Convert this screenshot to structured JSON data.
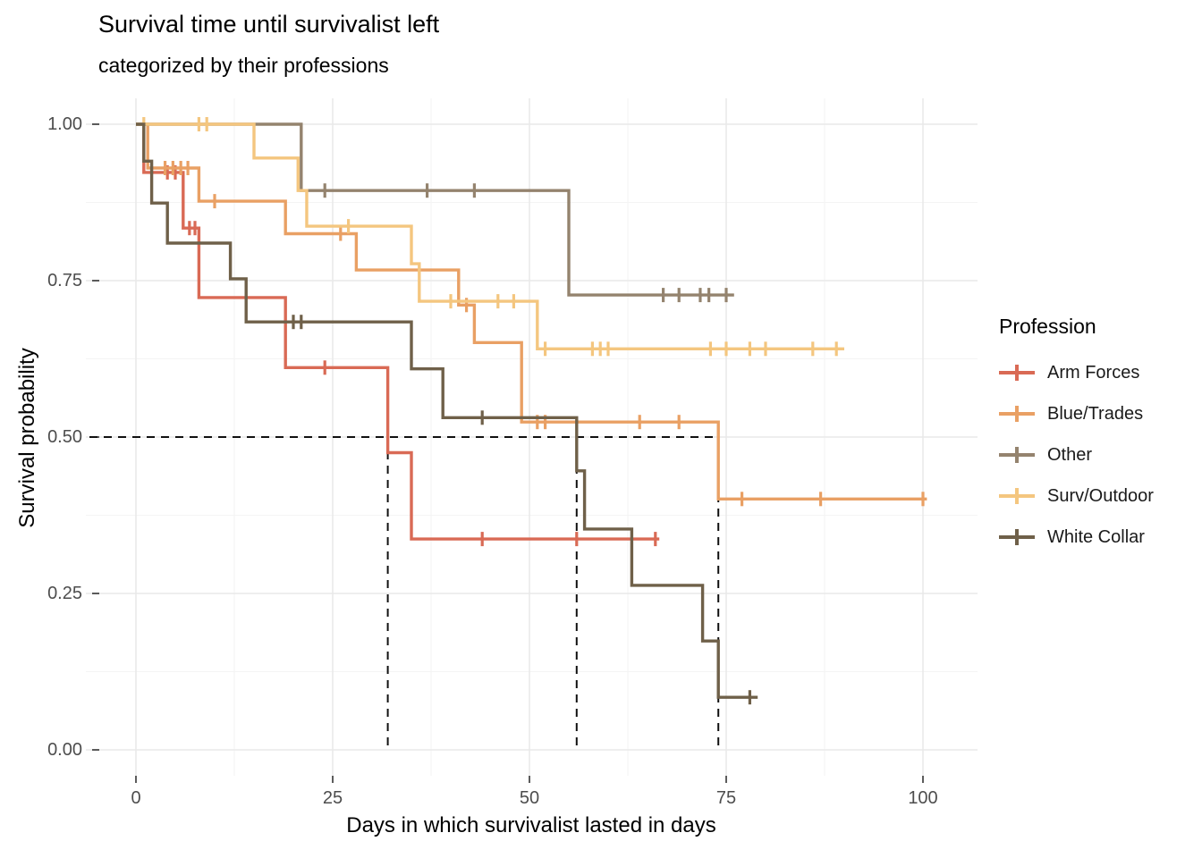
{
  "header": {
    "title": "Survival time until survivalist left",
    "subtitle": "categorized by their professions"
  },
  "axes": {
    "x_title": "Days in which survivalist lasted in days",
    "y_title": "Survival probability",
    "x_tick_labels": [
      "0",
      "25",
      "50",
      "75",
      "100"
    ],
    "y_tick_labels": [
      "1.00",
      "0.75",
      "0.50",
      "0.25",
      "0.00"
    ],
    "x_major": [
      0,
      25,
      50,
      75,
      100
    ],
    "x_minor": [
      12.5,
      37.5,
      62.5,
      87.5
    ],
    "y_major": [
      0,
      0.25,
      0.5,
      0.75,
      1.0
    ],
    "y_minor": [
      0.125,
      0.375,
      0.625,
      0.875
    ]
  },
  "legend": {
    "title": "Profession",
    "items": [
      {
        "label": "Arm Forces",
        "color": "#D96A55"
      },
      {
        "label": "Blue/Trades",
        "color": "#E9A064"
      },
      {
        "label": "Other",
        "color": "#94836E"
      },
      {
        "label": "Surv/Outdoor",
        "color": "#F4C67F"
      },
      {
        "label": "White Collar",
        "color": "#6F6049"
      }
    ]
  },
  "style": {
    "grid_major_color": "#E9E9E9",
    "grid_minor_color": "#F4F4F4",
    "tick_color": "#333333",
    "median_line_color": "#111111"
  },
  "chart_data": {
    "type": "line",
    "subtype": "kaplan-meier-step",
    "title": "Survival time until survivalist left",
    "subtitle": "categorized by their professions",
    "xlabel": "Days in which survivalist lasted in days",
    "ylabel": "Survival probability",
    "xlim": [
      -6.4,
      107
    ],
    "ylim": [
      -0.041,
      1.041
    ],
    "grid": true,
    "legend_position": "right",
    "median_lines": {
      "survival": 0.5,
      "x_values": [
        32,
        56,
        74
      ]
    },
    "series": [
      {
        "name": "Arm Forces",
        "color": "#D96A55",
        "steps": [
          [
            1,
            0.923
          ],
          [
            6,
            0.834
          ],
          [
            8,
            0.723
          ],
          [
            19,
            0.611
          ],
          [
            32,
            0.475
          ],
          [
            35,
            0.337
          ]
        ],
        "end": 66.5,
        "censors": [
          [
            4,
            0.923
          ],
          [
            5,
            0.923
          ],
          [
            6.8,
            0.834
          ],
          [
            7.5,
            0.834
          ],
          [
            24,
            0.611
          ],
          [
            44,
            0.337
          ],
          [
            56,
            0.337
          ],
          [
            66,
            0.337
          ]
        ]
      },
      {
        "name": "Blue/Trades",
        "color": "#E9A064",
        "steps": [
          [
            1.5,
            0.93
          ],
          [
            8,
            0.877
          ],
          [
            19,
            0.825
          ],
          [
            28,
            0.767
          ],
          [
            41,
            0.711
          ],
          [
            43,
            0.651
          ],
          [
            49,
            0.524
          ],
          [
            74,
            0.401
          ]
        ],
        "end": 100.5,
        "censors": [
          [
            3.7,
            0.93
          ],
          [
            4.7,
            0.93
          ],
          [
            5.7,
            0.93
          ],
          [
            6.6,
            0.93
          ],
          [
            10,
            0.877
          ],
          [
            26,
            0.825
          ],
          [
            42,
            0.711
          ],
          [
            51,
            0.524
          ],
          [
            52,
            0.524
          ],
          [
            64,
            0.524
          ],
          [
            69,
            0.524
          ],
          [
            77,
            0.401
          ],
          [
            87,
            0.401
          ],
          [
            100,
            0.401
          ]
        ]
      },
      {
        "name": "Other",
        "color": "#94836E",
        "steps": [
          [
            21,
            0.894
          ],
          [
            55,
            0.727
          ]
        ],
        "end": 76,
        "censors": [
          [
            24,
            0.894
          ],
          [
            37,
            0.894
          ],
          [
            43,
            0.894
          ],
          [
            67,
            0.727
          ],
          [
            69,
            0.727
          ],
          [
            71.7,
            0.727
          ],
          [
            72.8,
            0.727
          ],
          [
            75,
            0.727
          ]
        ]
      },
      {
        "name": "Surv/Outdoor",
        "color": "#F4C67F",
        "steps": [
          [
            15,
            0.946
          ],
          [
            20.6,
            0.894
          ],
          [
            21.7,
            0.837
          ],
          [
            35,
            0.777
          ],
          [
            36,
            0.717
          ],
          [
            51,
            0.641
          ]
        ],
        "end": 90,
        "censors": [
          [
            1,
            1.0
          ],
          [
            8,
            1.0
          ],
          [
            9,
            1.0
          ],
          [
            27,
            0.837
          ],
          [
            40,
            0.717
          ],
          [
            46,
            0.717
          ],
          [
            48,
            0.717
          ],
          [
            52,
            0.641
          ],
          [
            58,
            0.641
          ],
          [
            59,
            0.641
          ],
          [
            60,
            0.641
          ],
          [
            73,
            0.641
          ],
          [
            75,
            0.641
          ],
          [
            78,
            0.641
          ],
          [
            80,
            0.641
          ],
          [
            86,
            0.641
          ],
          [
            89,
            0.641
          ]
        ]
      },
      {
        "name": "White Collar",
        "color": "#6F6049",
        "steps": [
          [
            1,
            0.941
          ],
          [
            2,
            0.874
          ],
          [
            4,
            0.81
          ],
          [
            12,
            0.753
          ],
          [
            14,
            0.684
          ],
          [
            35,
            0.609
          ],
          [
            39,
            0.531
          ],
          [
            56,
            0.446
          ],
          [
            57,
            0.353
          ],
          [
            63,
            0.263
          ],
          [
            72,
            0.174
          ],
          [
            74,
            0.084
          ]
        ],
        "end": 79,
        "censors": [
          [
            20,
            0.684
          ],
          [
            21,
            0.684
          ],
          [
            44,
            0.531
          ],
          [
            78,
            0.084
          ]
        ]
      }
    ]
  }
}
